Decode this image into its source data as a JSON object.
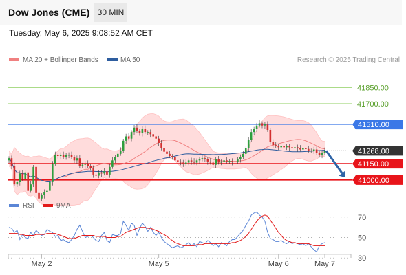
{
  "header": {
    "title": "Dow Jones (CME)",
    "interval": "30 MIN",
    "datetime": "Tuesday, May 6, 2025 9:08:52 AM CET"
  },
  "colors": {
    "bollinger_fill": "#ffdcdc",
    "ma20": "#f08080",
    "ma50": "#2e5d9f",
    "resistance": "#8fcf60",
    "pivot": "#3b78e7",
    "support": "#e8141a",
    "current": "#333333",
    "arrow": "#2e63a6",
    "candle_up": "#2e9e3e",
    "candle_down": "#d32f2f",
    "rsi": "#5b86d6",
    "rsi_ma": "#e31b1b"
  },
  "chart_data": [
    {
      "type": "candlestick",
      "legend": [
        {
          "name": "MA 20 + Bollinger Bands",
          "color": "#f08080"
        },
        {
          "name": "MA 50",
          "color": "#2e5d9f"
        }
      ],
      "attribution": "Research © 2025 Trading Central",
      "ylim": [
        40500,
        42300
      ],
      "x_ticks": [
        {
          "label": "May 2",
          "index": 12
        },
        {
          "label": "May 5",
          "index": 55
        },
        {
          "label": "May 6",
          "index": 99
        },
        {
          "label": "May 7",
          "index": 116
        }
      ],
      "levels": [
        {
          "value": 41850,
          "label": "41850.00",
          "kind": "resistance"
        },
        {
          "value": 41700,
          "label": "41700.00",
          "kind": "resistance"
        },
        {
          "value": 41510,
          "label": "41510.00",
          "kind": "pivot"
        },
        {
          "value": 41268,
          "label": "41268.00",
          "kind": "current"
        },
        {
          "value": 41150,
          "label": "41150.00",
          "kind": "support"
        },
        {
          "value": 41000,
          "label": "41000.00",
          "kind": "support"
        }
      ],
      "forecast": {
        "from": 41268,
        "to": 41010
      },
      "close": [
        41200,
        41130,
        40960,
        40980,
        41060,
        41010,
        41070,
        40900,
        40960,
        41120,
        40880,
        40830,
        40860,
        40890,
        40900,
        40980,
        41150,
        41230,
        41220,
        41230,
        41210,
        41230,
        41230,
        41210,
        41180,
        41200,
        41130,
        41140,
        41150,
        41130,
        41110,
        41050,
        41040,
        41070,
        41060,
        41080,
        41050,
        41120,
        41180,
        41210,
        41240,
        41270,
        41360,
        41400,
        41380,
        41440,
        41480,
        41450,
        41430,
        41470,
        41440,
        41440,
        41420,
        41400,
        41380,
        41340,
        41290,
        41260,
        41240,
        41220,
        41210,
        41180,
        41170,
        41160,
        41150,
        41160,
        41180,
        41170,
        41160,
        41180,
        41190,
        41200,
        41190,
        41170,
        41160,
        41140,
        41190,
        41160,
        41170,
        41180,
        41170,
        41175,
        41165,
        41170,
        41190,
        41210,
        41240,
        41290,
        41370,
        41440,
        41470,
        41500,
        41520,
        41500,
        41510,
        41460,
        41350,
        41320,
        41310,
        41300,
        41310,
        41300,
        41310,
        41300,
        41290,
        41300,
        41290,
        41280,
        41290,
        41285,
        41270,
        41270,
        41280,
        41250,
        41230,
        41250,
        41268
      ]
    },
    {
      "type": "line",
      "legend": [
        {
          "name": "RSI",
          "color": "#5b86d6"
        },
        {
          "name": "9MA",
          "color": "#e31b1b"
        }
      ],
      "ylim": [
        20,
        80
      ],
      "y_ticks": [
        70,
        50,
        30
      ],
      "rsi": [
        60,
        59,
        55,
        57,
        48,
        53,
        50,
        49,
        55,
        52,
        57,
        54,
        52,
        53,
        58,
        56,
        55,
        51,
        52,
        47,
        48,
        46,
        45,
        48,
        52,
        58,
        62,
        56,
        50,
        51,
        52,
        50,
        47,
        46,
        52,
        55,
        47,
        45,
        53,
        52,
        52,
        54,
        66,
        62,
        57,
        64,
        62,
        52,
        59,
        64,
        61,
        56,
        60,
        55,
        52,
        55,
        50,
        46,
        44,
        42,
        40,
        41,
        42,
        40,
        41,
        43,
        45,
        42,
        44,
        41,
        46,
        45,
        44,
        47,
        45,
        42,
        44,
        41,
        45,
        44,
        42,
        46,
        48,
        48,
        51,
        54,
        57,
        62,
        66,
        72,
        74,
        75,
        72,
        70,
        66,
        55,
        49,
        48,
        46,
        46,
        47,
        45,
        44,
        46,
        44,
        45,
        44,
        43,
        44,
        42,
        44,
        41,
        38,
        36,
        42,
        44,
        45
      ],
      "rsi_ma": [
        54,
        54,
        54,
        54,
        53,
        53,
        52,
        52,
        52,
        52,
        53,
        53,
        53,
        53,
        54,
        54,
        54,
        54,
        53,
        52,
        51,
        50,
        49,
        49,
        49,
        50,
        51,
        52,
        52,
        52,
        52,
        52,
        51,
        51,
        51,
        51,
        50,
        50,
        50,
        50,
        51,
        51,
        53,
        55,
        56,
        57,
        58,
        59,
        60,
        60,
        60,
        59,
        59,
        58,
        57,
        56,
        54,
        53,
        51,
        49,
        47,
        45,
        44,
        43,
        42,
        42,
        42,
        42,
        42,
        43,
        43,
        43,
        44,
        44,
        44,
        44,
        44,
        44,
        44,
        44,
        44,
        44,
        45,
        45,
        46,
        47,
        49,
        51,
        54,
        58,
        62,
        66,
        69,
        71,
        72,
        71,
        67,
        63,
        59,
        55,
        52,
        49,
        47,
        46,
        45,
        45,
        44,
        44,
        44,
        44,
        44,
        43,
        42,
        42,
        42,
        42,
        42
      ]
    }
  ]
}
